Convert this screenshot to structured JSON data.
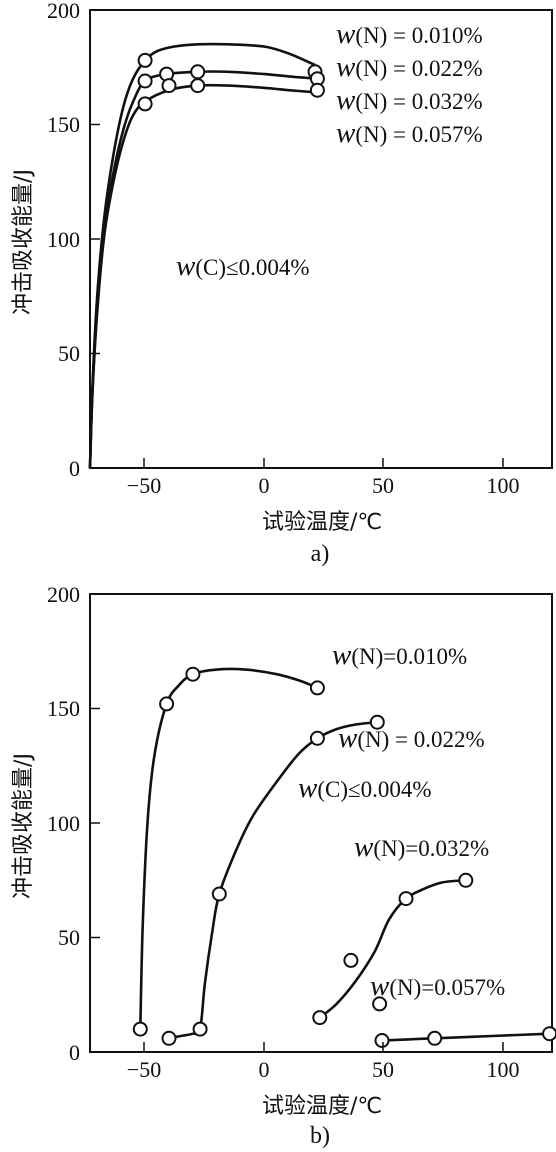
{
  "chart_data": [
    {
      "type": "line",
      "panel_label": "a)",
      "xlabel": "试验温度/℃",
      "ylabel": "冲击吸收能量/J",
      "xlim": [
        -73,
        120
      ],
      "ylim": [
        0,
        200
      ],
      "x_ticks": [
        -50,
        0,
        50,
        100
      ],
      "y_ticks": [
        0,
        50,
        100,
        150,
        200
      ],
      "grid": false,
      "series": [
        {
          "name": "w(N)=0.010%",
          "points": [
            [
              -50,
              178
            ],
            [
              21,
              173
            ]
          ],
          "curve": [
            [
              -73,
              0
            ],
            [
              -72,
              35
            ],
            [
              -70,
              75
            ],
            [
              -67,
              110
            ],
            [
              -63,
              138
            ],
            [
              -59,
              158
            ],
            [
              -55,
              170
            ],
            [
              -50,
              178
            ],
            [
              -45,
              182
            ],
            [
              -38,
              184
            ],
            [
              -28,
              185
            ],
            [
              -15,
              185
            ],
            [
              0,
              184
            ],
            [
              10,
              181
            ],
            [
              21,
              176
            ]
          ]
        },
        {
          "name": "w(N)=0.022%",
          "points": [
            [
              -50,
              169
            ],
            [
              -41,
              172
            ],
            [
              -28,
              173
            ],
            [
              22,
              170
            ]
          ],
          "curve": [
            [
              -73,
              0
            ],
            [
              -72,
              33
            ],
            [
              -70,
              70
            ],
            [
              -67,
              105
            ],
            [
              -63,
              130
            ],
            [
              -59,
              148
            ],
            [
              -55,
              160
            ],
            [
              -50,
              169
            ],
            [
              -41,
              172
            ],
            [
              -28,
              173
            ],
            [
              -15,
              173
            ],
            [
              0,
              172
            ],
            [
              10,
              171
            ],
            [
              22,
              170
            ]
          ]
        },
        {
          "name": "w(N)=0.032%",
          "points": [
            [
              -50,
              159
            ],
            [
              -40,
              167
            ],
            [
              -28,
              167
            ],
            [
              22,
              165
            ]
          ],
          "curve": [
            [
              -73,
              0
            ],
            [
              -72,
              32
            ],
            [
              -70,
              68
            ],
            [
              -67,
              102
            ],
            [
              -63,
              126
            ],
            [
              -59,
              143
            ],
            [
              -55,
              154
            ],
            [
              -50,
              160
            ],
            [
              -40,
              165
            ],
            [
              -28,
              167
            ],
            [
              -15,
              167
            ],
            [
              0,
              166
            ],
            [
              10,
              165
            ],
            [
              22,
              164
            ]
          ]
        },
        {
          "name": "w(N)=0.057%",
          "points": [],
          "curve": []
        }
      ],
      "annotations": [
        "w(C)≤0.004%"
      ]
    },
    {
      "type": "line",
      "panel_label": "b)",
      "xlabel": "试验温度/℃",
      "ylabel": "冲击吸收能量/J",
      "xlim": [
        -73,
        120
      ],
      "ylim": [
        0,
        200
      ],
      "x_ticks": [
        -50,
        0,
        50,
        100
      ],
      "y_ticks": [
        0,
        50,
        100,
        150,
        200
      ],
      "grid": false,
      "series": [
        {
          "name": "w(N)=0.010%",
          "points": [
            [
              -52,
              10
            ],
            [
              -41,
              152
            ],
            [
              -30,
              165
            ],
            [
              22,
              159
            ]
          ],
          "curve": [
            [
              -52,
              10
            ],
            [
              -51,
              55
            ],
            [
              -49,
              100
            ],
            [
              -46,
              130
            ],
            [
              -41,
              152
            ],
            [
              -36,
              160
            ],
            [
              -30,
              165
            ],
            [
              -20,
              167
            ],
            [
              -8,
              167
            ],
            [
              5,
              165
            ],
            [
              15,
              162
            ],
            [
              22,
              159
            ]
          ]
        },
        {
          "name": "w(N)=0.022%",
          "points": [
            [
              -40,
              6
            ],
            [
              -27,
              10
            ],
            [
              -19,
              69
            ],
            [
              22,
              137
            ],
            [
              47,
              144
            ]
          ],
          "curve": [
            [
              -40,
              6
            ],
            [
              -35,
              7
            ],
            [
              -30,
              8
            ],
            [
              -27,
              10
            ],
            [
              -25,
              30
            ],
            [
              -22,
              52
            ],
            [
              -19,
              69
            ],
            [
              -12,
              88
            ],
            [
              -5,
              103
            ],
            [
              5,
              118
            ],
            [
              14,
              130
            ],
            [
              22,
              137
            ],
            [
              30,
              141
            ],
            [
              38,
              143
            ],
            [
              47,
              144
            ]
          ]
        },
        {
          "name": "w(N)=0.032%",
          "points": [
            [
              23,
              15
            ],
            [
              36,
              40
            ],
            [
              48,
              21
            ],
            [
              59,
              67
            ],
            [
              84,
              75
            ]
          ],
          "curve": [
            [
              23,
              15
            ],
            [
              30,
              21
            ],
            [
              38,
              31
            ],
            [
              46,
              44
            ],
            [
              52,
              58
            ],
            [
              59,
              67
            ],
            [
              66,
              71
            ],
            [
              74,
              74
            ],
            [
              84,
              75
            ]
          ]
        },
        {
          "name": "w(N)=0.057%",
          "points": [
            [
              49,
              5
            ],
            [
              71,
              6
            ],
            [
              119,
              8
            ]
          ],
          "curve": [
            [
              49,
              5
            ],
            [
              60,
              5.5
            ],
            [
              71,
              6
            ],
            [
              95,
              7
            ],
            [
              119,
              8
            ]
          ]
        }
      ],
      "annotations": [
        "w(C)≤0.004%"
      ]
    }
  ],
  "panel_a": {
    "panel_label": "a)",
    "ylabel": "冲击吸收能量/J",
    "xlabel": "试验温度/℃",
    "legend": [
      {
        "sym": "w",
        "rest": "(N) = 0.010%"
      },
      {
        "sym": "w",
        "rest": "(N) = 0.022%"
      },
      {
        "sym": "w",
        "rest": "(N) = 0.032%"
      },
      {
        "sym": "w",
        "rest": "(N) = 0.057%"
      }
    ],
    "carbon_note": {
      "sym": "w",
      "rest": "(C)≤0.004%"
    },
    "y_tick_labels": [
      "0",
      "50",
      "100",
      "150",
      "200"
    ],
    "x_tick_labels": [
      "−50",
      "0",
      "50",
      "100"
    ]
  },
  "panel_b": {
    "panel_label": "b)",
    "ylabel": "冲击吸收能量/J",
    "xlabel": "试验温度/℃",
    "labels": [
      {
        "sym": "w",
        "rest": "(N)=0.010%"
      },
      {
        "sym": "w",
        "rest": "(N) = 0.022%"
      },
      {
        "sym": "w",
        "rest": "(C)≤0.004%"
      },
      {
        "sym": "w",
        "rest": "(N)=0.032%"
      },
      {
        "sym": "w",
        "rest": "(N)=0.057%"
      }
    ],
    "y_tick_labels": [
      "0",
      "50",
      "100",
      "150",
      "200"
    ],
    "x_tick_labels": [
      "−50",
      "0",
      "50",
      "100"
    ]
  }
}
